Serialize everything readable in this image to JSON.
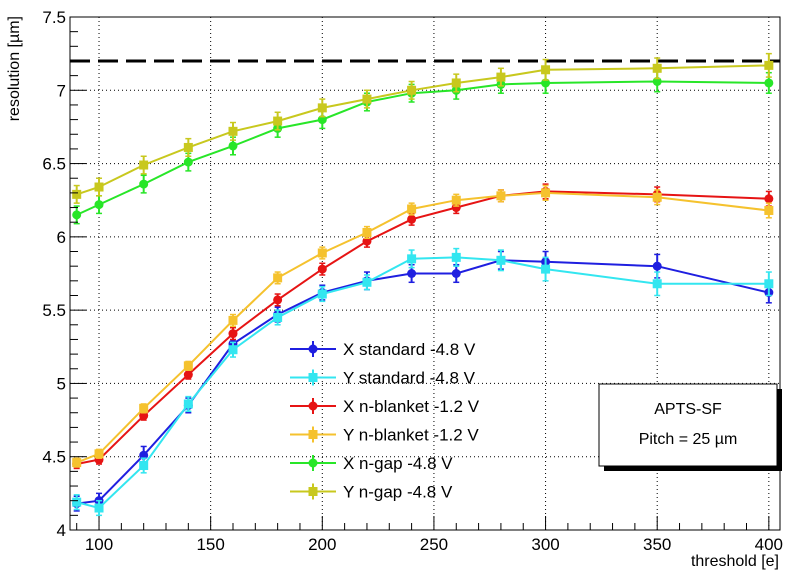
{
  "chart_data": {
    "type": "line",
    "xlabel": "threshold [e]",
    "ylabel": "resolution [µm]",
    "xlim": [
      87,
      405
    ],
    "ylim": [
      4,
      7.5
    ],
    "x_ticks": [
      100,
      150,
      200,
      250,
      300,
      350,
      400
    ],
    "y_ticks": [
      4,
      4.5,
      5,
      5.5,
      6,
      6.5,
      7,
      7.5
    ],
    "x_tick_labels": [
      "100",
      "150",
      "200",
      "250",
      "300",
      "350",
      "400"
    ],
    "y_tick_labels": [
      "4",
      "4.5",
      "5",
      "5.5",
      "6",
      "6.5",
      "7",
      "7.5"
    ],
    "grid": true,
    "reference_line": {
      "y": 7.2,
      "style": "dashed",
      "color": "#000000"
    },
    "legend_position": "center-left",
    "series": [
      {
        "name": "X standard -4.8 V",
        "color": "#1f1fe0",
        "marker": "circle",
        "x": [
          90,
          100,
          120,
          140,
          160,
          180,
          200,
          220,
          240,
          260,
          280,
          300,
          350,
          400
        ],
        "y": [
          4.18,
          4.2,
          4.51,
          4.85,
          5.27,
          5.47,
          5.62,
          5.7,
          5.75,
          5.75,
          5.84,
          5.83,
          5.8,
          5.62
        ],
        "err": [
          0.05,
          0.05,
          0.06,
          0.05,
          0.05,
          0.05,
          0.05,
          0.06,
          0.06,
          0.06,
          0.06,
          0.07,
          0.08,
          0.07
        ]
      },
      {
        "name": "Y standard -4.8 V",
        "color": "#33e6f0",
        "marker": "square",
        "x": [
          90,
          100,
          120,
          140,
          160,
          180,
          200,
          220,
          240,
          260,
          280,
          300,
          350,
          400
        ],
        "y": [
          4.19,
          4.15,
          4.44,
          4.86,
          5.23,
          5.45,
          5.61,
          5.69,
          5.85,
          5.86,
          5.84,
          5.78,
          5.68,
          5.68
        ],
        "err": [
          0.05,
          0.05,
          0.05,
          0.05,
          0.05,
          0.05,
          0.05,
          0.05,
          0.06,
          0.06,
          0.07,
          0.08,
          0.08,
          0.08
        ]
      },
      {
        "name": "X n-blanket -1.2 V",
        "color": "#e61414",
        "marker": "circle",
        "x": [
          90,
          100,
          120,
          140,
          160,
          180,
          200,
          220,
          240,
          260,
          280,
          300,
          350,
          400
        ],
        "y": [
          4.45,
          4.48,
          4.78,
          5.06,
          5.34,
          5.57,
          5.78,
          5.97,
          6.12,
          6.2,
          6.28,
          6.31,
          6.29,
          6.26
        ],
        "err": [
          0.03,
          0.03,
          0.03,
          0.03,
          0.04,
          0.04,
          0.04,
          0.04,
          0.04,
          0.04,
          0.04,
          0.05,
          0.05,
          0.05
        ]
      },
      {
        "name": "Y n-blanket -1.2 V",
        "color": "#f5c22e",
        "marker": "square",
        "x": [
          90,
          100,
          120,
          140,
          160,
          180,
          200,
          220,
          240,
          260,
          280,
          300,
          350,
          400
        ],
        "y": [
          4.46,
          4.52,
          4.83,
          5.12,
          5.43,
          5.72,
          5.89,
          6.03,
          6.19,
          6.25,
          6.28,
          6.3,
          6.27,
          6.18
        ],
        "err": [
          0.03,
          0.03,
          0.03,
          0.03,
          0.04,
          0.04,
          0.04,
          0.04,
          0.04,
          0.04,
          0.04,
          0.05,
          0.05,
          0.05
        ]
      },
      {
        "name": "X n-gap -4.8 V",
        "color": "#28e628",
        "marker": "circle",
        "x": [
          90,
          100,
          120,
          140,
          160,
          180,
          200,
          220,
          240,
          260,
          280,
          300,
          350,
          400
        ],
        "y": [
          6.15,
          6.22,
          6.36,
          6.51,
          6.62,
          6.74,
          6.8,
          6.92,
          6.98,
          7.0,
          7.04,
          7.05,
          7.06,
          7.05
        ],
        "err": [
          0.06,
          0.06,
          0.06,
          0.06,
          0.06,
          0.06,
          0.06,
          0.06,
          0.06,
          0.06,
          0.06,
          0.07,
          0.07,
          0.07
        ]
      },
      {
        "name": "Y n-gap -4.8 V",
        "color": "#c8c81e",
        "marker": "square",
        "x": [
          90,
          100,
          120,
          140,
          160,
          180,
          200,
          220,
          240,
          260,
          280,
          300,
          350,
          400
        ],
        "y": [
          6.29,
          6.34,
          6.49,
          6.61,
          6.72,
          6.79,
          6.88,
          6.94,
          7.0,
          7.05,
          7.09,
          7.14,
          7.15,
          7.17
        ],
        "err": [
          0.06,
          0.06,
          0.06,
          0.06,
          0.06,
          0.06,
          0.06,
          0.06,
          0.06,
          0.06,
          0.06,
          0.07,
          0.07,
          0.08
        ]
      }
    ],
    "info_box": {
      "title": "APTS-SF",
      "subtitle": "Pitch = 25 µm"
    }
  }
}
